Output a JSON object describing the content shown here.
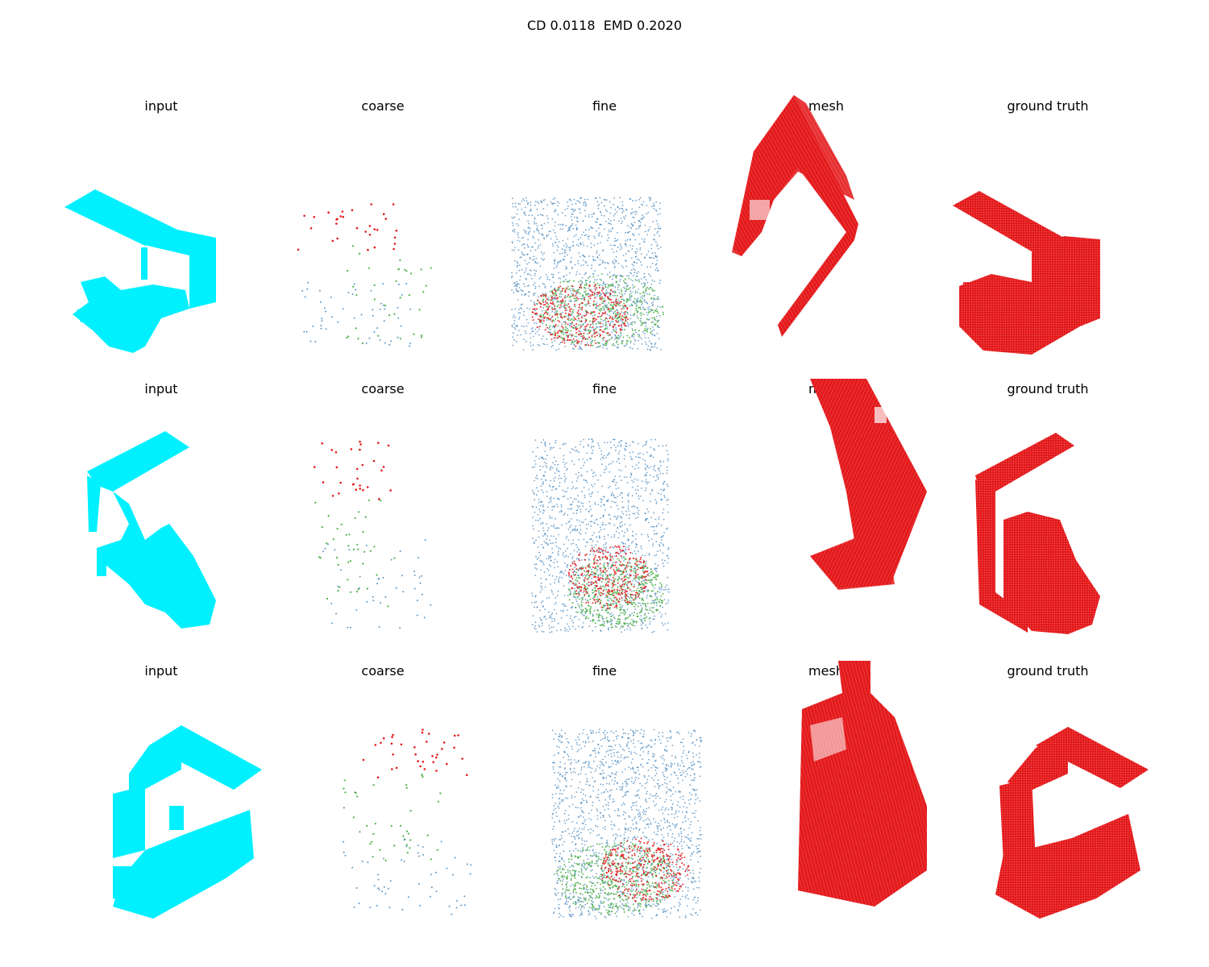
{
  "figure": {
    "title": "CD 0.0118  EMD 0.2020",
    "colors": {
      "input": "#00f0ff",
      "mesh": "#e41a1c",
      "ground_truth": "#e41a1c",
      "red": "#e41a1c",
      "green": "#4daf4a",
      "blue": "#377eb8"
    },
    "rows": [
      {
        "panels": [
          {
            "title": "input"
          },
          {
            "title": "coarse"
          },
          {
            "title": "fine"
          },
          {
            "title": "mesh"
          },
          {
            "title": "ground truth"
          }
        ]
      },
      {
        "panels": [
          {
            "title": "input"
          },
          {
            "title": "coarse"
          },
          {
            "title": "fine"
          },
          {
            "title": "mesh"
          },
          {
            "title": "ground truth"
          }
        ]
      },
      {
        "panels": [
          {
            "title": "input"
          },
          {
            "title": "coarse"
          },
          {
            "title": "fine"
          },
          {
            "title": "mesh"
          },
          {
            "title": "ground truth"
          }
        ]
      }
    ]
  }
}
